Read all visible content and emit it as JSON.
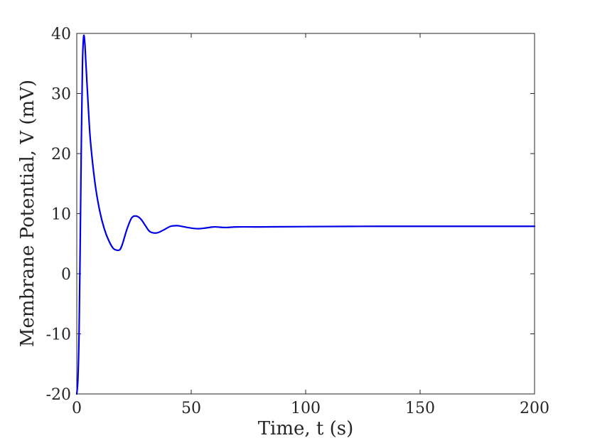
{
  "chart_data": {
    "type": "line",
    "xlabel": "Time, t (s)",
    "ylabel": "Membrane Potential, V (mV)",
    "xlim": [
      0,
      200
    ],
    "ylim": [
      -20,
      40
    ],
    "x_ticks": [
      0,
      50,
      100,
      150,
      200
    ],
    "y_ticks": [
      -20,
      -10,
      0,
      10,
      20,
      30,
      40
    ],
    "x_tick_labels": [
      "0",
      "50",
      "100",
      "150",
      "200"
    ],
    "y_tick_labels": [
      "-20",
      "-10",
      "0",
      "10",
      "20",
      "30",
      "40"
    ],
    "grid": false,
    "line_color": "#0000e6",
    "series": [
      {
        "x": [
          0,
          0.5,
          1,
          1.5,
          2,
          2.5,
          3,
          3.5,
          4,
          5,
          6,
          8,
          10,
          12,
          14,
          16,
          18,
          19,
          20,
          22,
          24,
          26,
          28,
          30,
          32,
          35,
          38,
          41,
          44,
          47,
          50,
          53,
          56,
          60,
          65,
          70,
          80,
          100,
          130,
          160,
          200
        ],
        "y": [
          -20,
          -17.5,
          -10,
          5,
          22,
          35,
          39.5,
          38.5,
          35,
          28,
          22,
          15,
          10.5,
          7.5,
          5.5,
          4.2,
          3.9,
          4.1,
          5.0,
          7.5,
          9.3,
          9.6,
          9.1,
          8.0,
          7.0,
          6.8,
          7.3,
          7.9,
          8.0,
          7.8,
          7.6,
          7.5,
          7.6,
          7.8,
          7.7,
          7.8,
          7.8,
          7.85,
          7.9,
          7.9,
          7.9
        ]
      }
    ]
  }
}
